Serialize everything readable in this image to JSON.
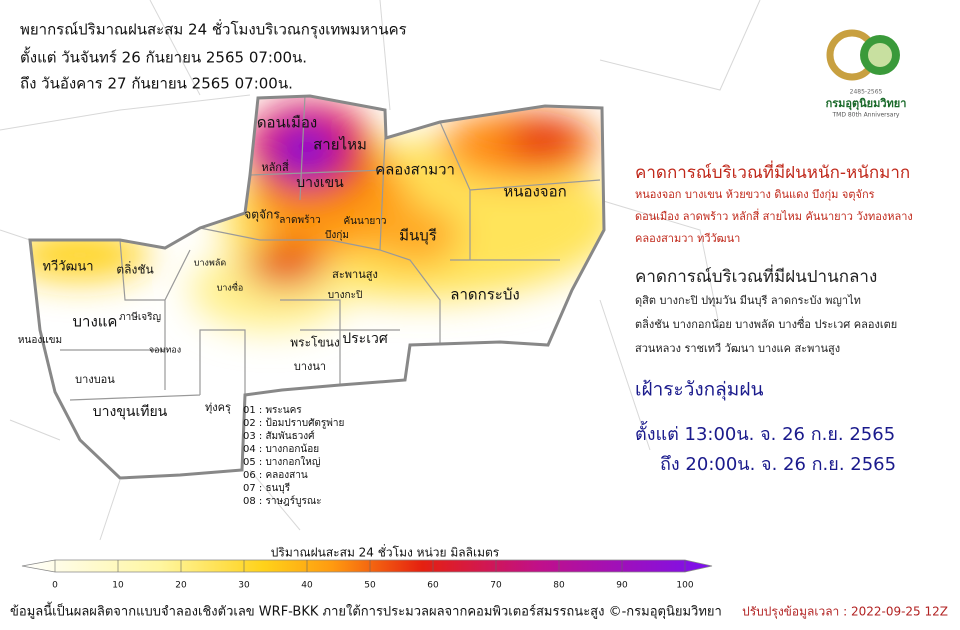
{
  "header": {
    "title": "พยากรณ์ปริมาณฝนสะสม 24 ชั่วโมงบริเวณกรุงเทพมหานคร",
    "from": "ตั้งแต่ วันจันทร์ 26 กันยายน 2565 07:00น.",
    "to": "ถึง วันอังคาร 27 กันยายน 2565 07:00น."
  },
  "logo": {
    "years": "2485-2565",
    "name": "กรมอุตุนิยมวิทยา",
    "tagline": "TMD 80th Anniversary"
  },
  "heavy": {
    "heading": "คาดการณ์บริเวณที่มีฝนหนัก-หนักมาก",
    "lines": [
      "หนองจอก บางเขน ห้วยขวาง ดินแดง บึงกุ่ม จตุจักร",
      "ดอนเมือง ลาดพร้าว หลักสี่ สายไหม คันนายาว วังทองหลาง",
      "คลองสามวา ทวีวัฒนา"
    ]
  },
  "moderate": {
    "heading": "คาดการณ์บริเวณที่มีฝนปานกลาง",
    "lines": [
      "ดุสิต บางกะปิ ปทุมวัน มีนบุรี ลาดกระบัง พญาไท",
      "ตลิ่งชัน บางกอกน้อย บางพลัด บางซื่อ ประเวศ คลองเตย",
      "สวนหลวง ราชเทวี วัฒนา บางแค สะพานสูง"
    ]
  },
  "watch": {
    "heading": "เฝ้าระวังกลุ่มฝน",
    "from": "ตั้งแต่ 13:00น. จ. 26 ก.ย. 2565",
    "to": "ถึง 20:00น. จ. 26 ก.ย. 2565"
  },
  "districts": [
    "ดอนเมือง",
    "สายไหม",
    "หลักสี่",
    "บางเขน",
    "คลองสามวา",
    "หนองจอก",
    "จตุจักร",
    "ลาดพร้าว",
    "คันนายาว",
    "บึงกุ่ม",
    "มีนบุรี",
    "ทวีวัฒนา",
    "ตลิ่งชัน",
    "บางแค",
    "หนองแขม",
    "บางบอน",
    "บางขุนเทียน",
    "ทุ่งครุ",
    "สะพานสูง",
    "ลาดกระบัง",
    "บางกะปิ",
    "ประเวศ",
    "พระโขนง",
    "บางนา",
    "ภาษีเจริญ",
    "จอมทอง",
    "บางพลัด",
    "บางซื่อ"
  ],
  "key": [
    "01 : พระนคร",
    "02 : ป้อมปราบศัตรูพ่าย",
    "03 : สัมพันธวงศ์",
    "04 : บางกอกน้อย",
    "05 : บางกอกใหญ่",
    "06 : คลองสาน",
    "07 : ธนบุรี",
    "08 : ราษฎร์บูรณะ"
  ],
  "colorbar": {
    "title": "ปริมาณฝนสะสม 24 ชั่วโมง หน่วย มิลลิเมตร",
    "ticks": [
      0,
      10,
      20,
      30,
      40,
      50,
      60,
      70,
      80,
      90,
      100
    ]
  },
  "footer": {
    "source": "ข้อมูลนี้เป็นผลผลิตจากแบบจำลองเชิงตัวเลข WRF-BKK ภายใต้การประมวลผลจากคอมพิวเตอร์สมรรถนะสูง ©-กรมอุตุนิยมวิทยา",
    "updated": "ปรับปรุงข้อมูลเวลา : 2022-09-25 12Z"
  }
}
